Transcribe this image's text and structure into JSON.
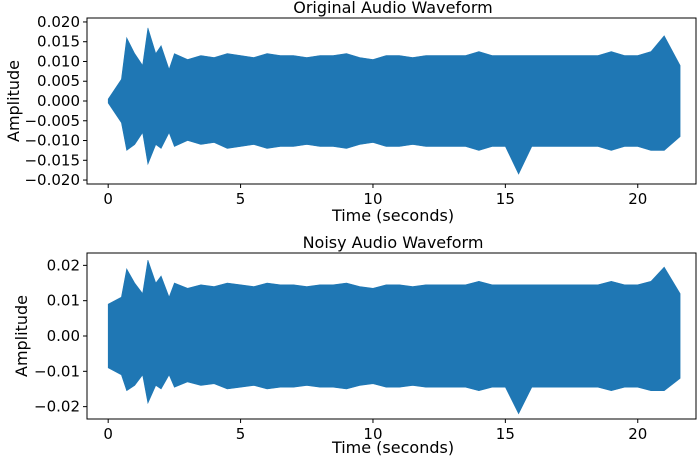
{
  "chart_data": [
    {
      "type": "line",
      "title": "Original Audio Waveform",
      "xlabel": "Time (seconds)",
      "ylabel": "Amplitude",
      "xlim": [
        -0.8,
        22.2
      ],
      "ylim": [
        -0.021,
        0.021
      ],
      "xticks": [
        0,
        5,
        10,
        15,
        20
      ],
      "xtick_labels": [
        "0",
        "5",
        "10",
        "15",
        "20"
      ],
      "yticks": [
        0.02,
        0.015,
        0.01,
        0.005,
        0.0,
        -0.005,
        -0.01,
        -0.015,
        -0.02
      ],
      "ytick_labels": [
        "0.020",
        "0.015",
        "0.010",
        "0.005",
        "0.000",
        "−0.005",
        "−0.010",
        "−0.015",
        "−0.020"
      ],
      "grid": false,
      "color": "#1f77b4",
      "series": [
        {
          "x": [
            0.0,
            0.5,
            0.7,
            1.0,
            1.3,
            1.5,
            1.8,
            2.0,
            2.3,
            2.5,
            3.0,
            3.5,
            4.0,
            4.5,
            5.0,
            5.5,
            6.0,
            6.5,
            7.0,
            7.5,
            8.0,
            8.5,
            9.0,
            9.5,
            10.0,
            10.5,
            11.0,
            11.5,
            12.0,
            12.5,
            13.0,
            13.5,
            14.0,
            14.5,
            15.0,
            15.5,
            16.0,
            16.5,
            17.0,
            17.5,
            18.0,
            18.5,
            19.0,
            19.5,
            20.0,
            20.5,
            21.0,
            21.6
          ],
          "y_max": [
            0.0005,
            0.0055,
            0.016,
            0.012,
            0.009,
            0.0185,
            0.012,
            0.014,
            0.008,
            0.012,
            0.0105,
            0.0115,
            0.011,
            0.012,
            0.0115,
            0.011,
            0.012,
            0.0115,
            0.0115,
            0.011,
            0.0115,
            0.0115,
            0.012,
            0.011,
            0.0105,
            0.0115,
            0.0115,
            0.011,
            0.0115,
            0.0115,
            0.0115,
            0.0115,
            0.0125,
            0.0115,
            0.0115,
            0.0115,
            0.0115,
            0.0115,
            0.0115,
            0.0115,
            0.0115,
            0.0115,
            0.0125,
            0.0115,
            0.0115,
            0.0125,
            0.0165,
            0.009
          ],
          "y_min": [
            -0.0005,
            -0.0055,
            -0.0125,
            -0.011,
            -0.008,
            -0.016,
            -0.011,
            -0.012,
            -0.008,
            -0.0115,
            -0.01,
            -0.011,
            -0.0105,
            -0.012,
            -0.0115,
            -0.011,
            -0.012,
            -0.0115,
            -0.0115,
            -0.011,
            -0.0115,
            -0.0115,
            -0.012,
            -0.011,
            -0.0105,
            -0.0115,
            -0.0115,
            -0.011,
            -0.0115,
            -0.0115,
            -0.0115,
            -0.0115,
            -0.0125,
            -0.0115,
            -0.0115,
            -0.0185,
            -0.0115,
            -0.0115,
            -0.0115,
            -0.0115,
            -0.0115,
            -0.0115,
            -0.0125,
            -0.0115,
            -0.0115,
            -0.0125,
            -0.0125,
            -0.009
          ]
        }
      ]
    },
    {
      "type": "line",
      "title": "Noisy Audio Waveform",
      "xlabel": "Time (seconds)",
      "ylabel": "Amplitude",
      "xlim": [
        -0.8,
        22.2
      ],
      "ylim": [
        -0.0235,
        0.0235
      ],
      "xticks": [
        0,
        5,
        10,
        15,
        20
      ],
      "xtick_labels": [
        "0",
        "5",
        "10",
        "15",
        "20"
      ],
      "yticks": [
        0.02,
        0.01,
        0.0,
        -0.01,
        -0.02
      ],
      "ytick_labels": [
        "0.02",
        "0.01",
        "0.00",
        "−0.01",
        "−0.02"
      ],
      "grid": false,
      "color": "#1f77b4",
      "series": [
        {
          "x": [
            0.0,
            0.5,
            0.7,
            1.0,
            1.3,
            1.5,
            1.8,
            2.0,
            2.3,
            2.5,
            3.0,
            3.5,
            4.0,
            4.5,
            5.0,
            5.5,
            6.0,
            6.5,
            7.0,
            7.5,
            8.0,
            8.5,
            9.0,
            9.5,
            10.0,
            10.5,
            11.0,
            11.5,
            12.0,
            12.5,
            13.0,
            13.5,
            14.0,
            14.5,
            15.0,
            15.5,
            16.0,
            16.5,
            17.0,
            17.5,
            18.0,
            18.5,
            19.0,
            19.5,
            20.0,
            20.5,
            21.0,
            21.6
          ],
          "y_max": [
            0.009,
            0.011,
            0.019,
            0.015,
            0.012,
            0.0215,
            0.015,
            0.017,
            0.011,
            0.015,
            0.0135,
            0.0145,
            0.014,
            0.015,
            0.0145,
            0.014,
            0.015,
            0.0145,
            0.0145,
            0.014,
            0.0145,
            0.0145,
            0.015,
            0.014,
            0.0135,
            0.0145,
            0.0145,
            0.014,
            0.0145,
            0.0145,
            0.0145,
            0.0145,
            0.0155,
            0.0145,
            0.0145,
            0.0145,
            0.0145,
            0.0145,
            0.0145,
            0.0145,
            0.0145,
            0.0145,
            0.0155,
            0.0145,
            0.0145,
            0.0155,
            0.0195,
            0.012
          ],
          "y_min": [
            -0.009,
            -0.011,
            -0.0155,
            -0.014,
            -0.011,
            -0.019,
            -0.014,
            -0.015,
            -0.011,
            -0.0145,
            -0.013,
            -0.014,
            -0.0135,
            -0.015,
            -0.0145,
            -0.014,
            -0.015,
            -0.0145,
            -0.0145,
            -0.014,
            -0.0145,
            -0.0145,
            -0.015,
            -0.014,
            -0.0135,
            -0.0145,
            -0.0145,
            -0.014,
            -0.0145,
            -0.0145,
            -0.0145,
            -0.0145,
            -0.0155,
            -0.0145,
            -0.0145,
            -0.022,
            -0.0145,
            -0.0145,
            -0.0145,
            -0.0145,
            -0.0145,
            -0.0145,
            -0.0155,
            -0.0145,
            -0.0145,
            -0.0155,
            -0.0155,
            -0.012
          ]
        }
      ]
    }
  ]
}
